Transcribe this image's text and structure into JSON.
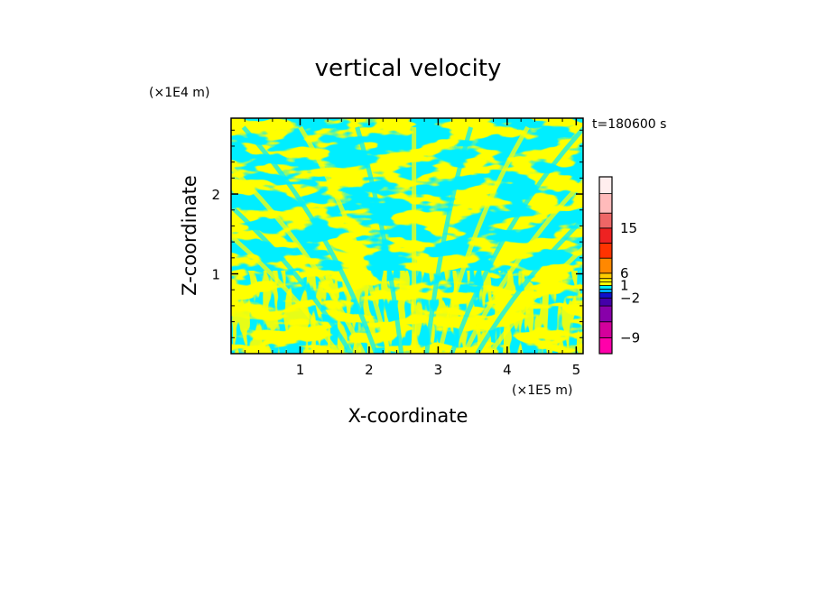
{
  "chart_data": {
    "type": "heatmap",
    "title": "vertical velocity",
    "xlabel": "X-coordinate",
    "ylabel": "Z-coordinate",
    "x_unit_label": "(×1E5 m)",
    "y_unit_label": "(×1E4 m)",
    "time_label": "t=180600 s",
    "xlim": [
      0,
      5.1
    ],
    "ylim": [
      0,
      2.95
    ],
    "x_ticks": [
      1,
      2,
      3,
      4,
      5
    ],
    "y_ticks": [
      1,
      2
    ],
    "colorbar": {
      "levels": [
        -12,
        -9,
        -6,
        -3,
        -2,
        -1,
        0,
        1,
        2,
        3,
        6,
        9,
        12,
        15,
        18,
        21
      ],
      "colors": [
        "#ff00aa",
        "#d4009c",
        "#8800aa",
        "#4400aa",
        "#1010cc",
        "#00aaff",
        "#00eeff",
        "#ffff00",
        "#ffee00",
        "#ffcc00",
        "#ff8800",
        "#ff3300",
        "#ee2222",
        "#ee6666",
        "#ffbbbb",
        "#ffeeee"
      ],
      "tick_labels": [
        {
          "label": "15",
          "value": 15
        },
        {
          "label": "6",
          "value": 6
        },
        {
          "label": "1",
          "value": 1
        },
        {
          "label": "−2",
          "value": -2
        },
        {
          "label": "−9",
          "value": -9
        }
      ]
    },
    "field_colors": {
      "positive": "#ffff00",
      "negative": "#00eeff"
    },
    "description_values": "Field dominated by two contour bands: w in [-1,0] (cyan) and w in [0,1] (yellow), with V-shaped wave pattern centered near x≈2.7 and fine-scale structure near the ground."
  }
}
